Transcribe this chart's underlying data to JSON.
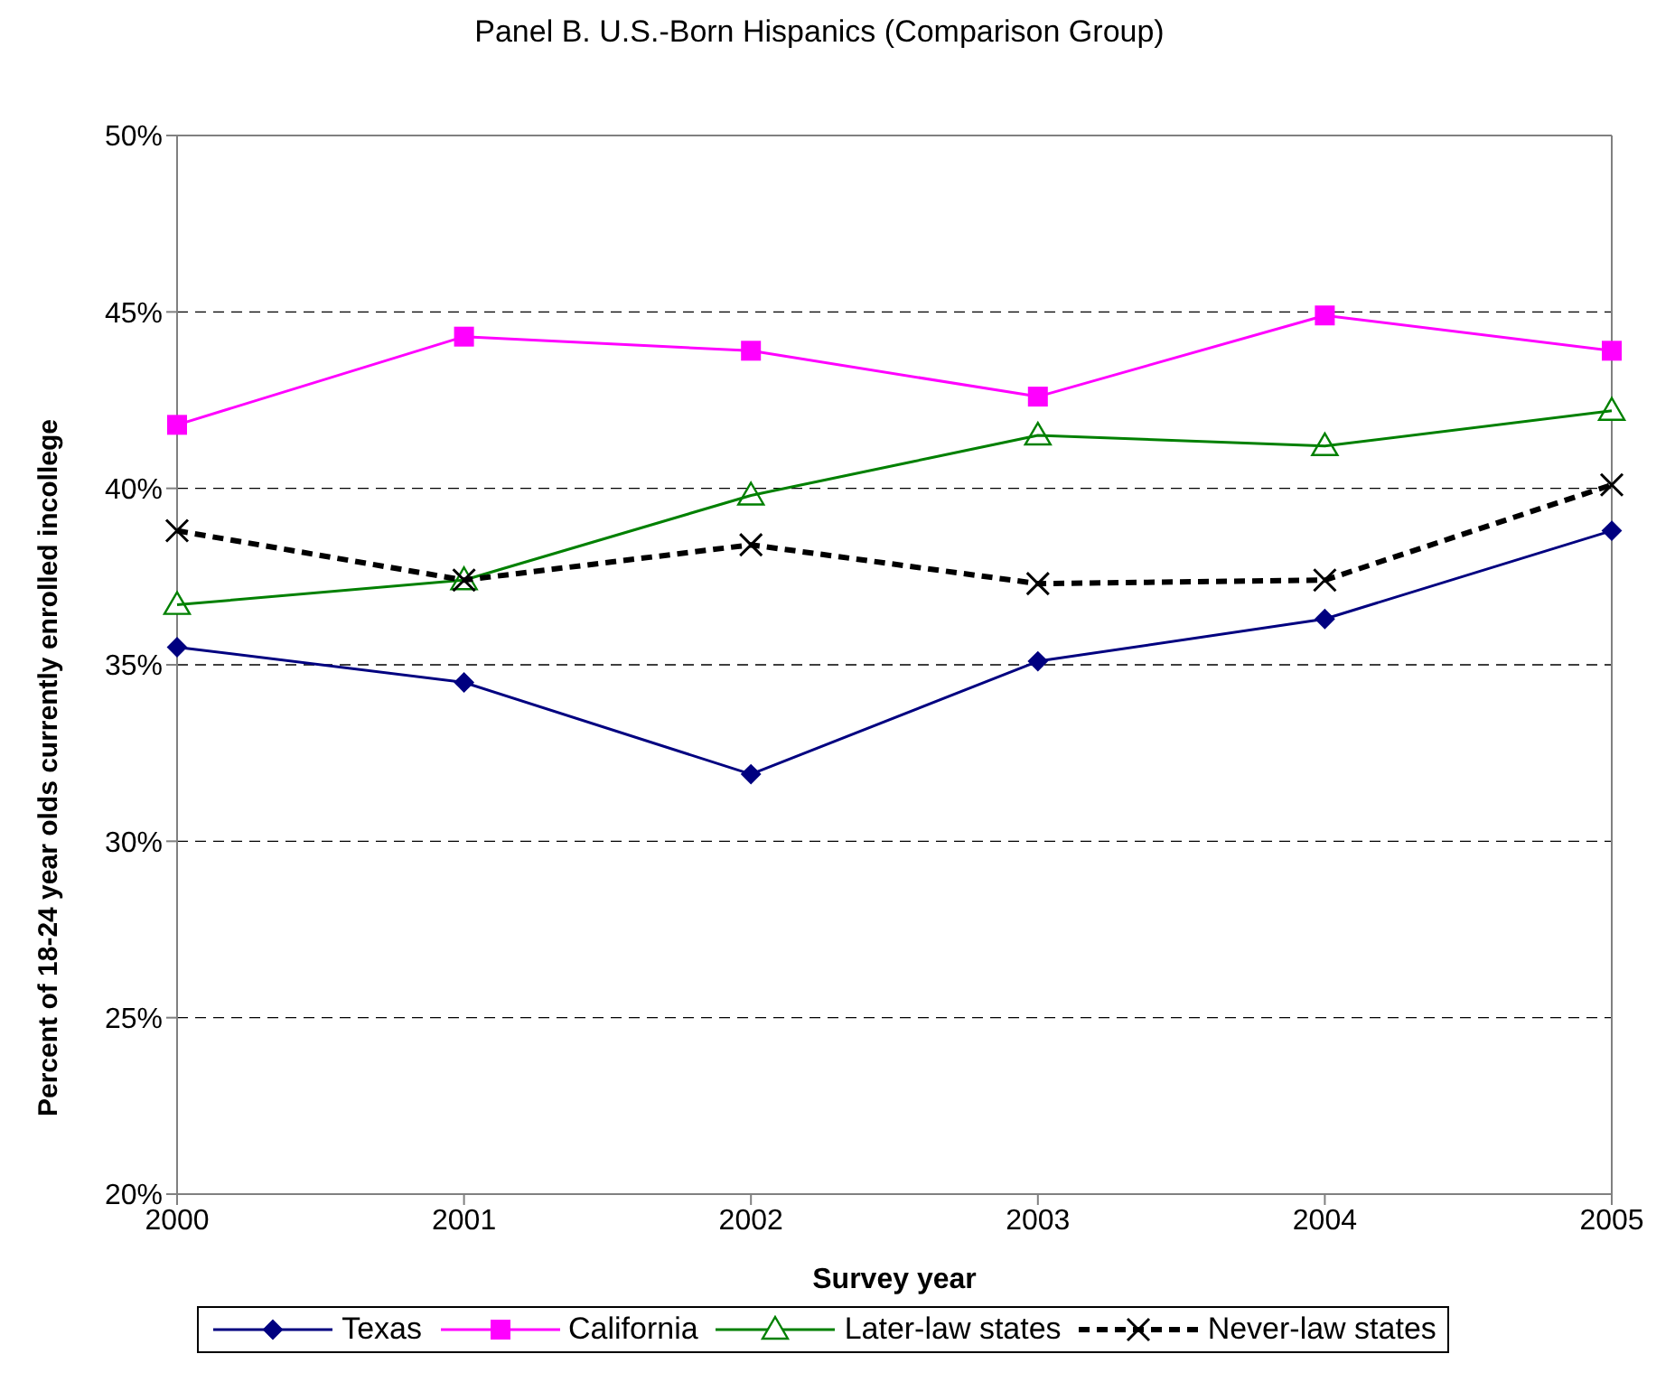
{
  "chart_data": {
    "type": "line",
    "title": "Panel B. U.S.-Born Hispanics (Comparison Group)",
    "xlabel": "Survey year",
    "ylabel": "Percent of 18-24 year olds currently enrolled incollege",
    "categories": [
      "2000",
      "2001",
      "2002",
      "2003",
      "2004",
      "2005"
    ],
    "series": [
      {
        "name": "Texas",
        "color": "#000080",
        "marker": "diamond",
        "line_style": "solid",
        "values": [
          35.5,
          34.5,
          31.9,
          35.1,
          36.3,
          38.8
        ]
      },
      {
        "name": "California",
        "color": "#ff00ff",
        "marker": "square",
        "line_style": "solid",
        "values": [
          41.8,
          44.3,
          43.9,
          42.6,
          44.9,
          43.9
        ]
      },
      {
        "name": "Later-law states",
        "color": "#008000",
        "marker": "triangle",
        "line_style": "solid",
        "values": [
          36.7,
          37.4,
          39.8,
          41.5,
          41.2,
          42.2
        ]
      },
      {
        "name": "Never-law states",
        "color": "#000000",
        "marker": "cross",
        "line_style": "dashed",
        "values": [
          38.8,
          37.4,
          38.4,
          37.3,
          37.4,
          40.1
        ]
      }
    ],
    "ylim": [
      20,
      50
    ],
    "yticks": [
      {
        "value": 20,
        "label": "20%"
      },
      {
        "value": 25,
        "label": "25%"
      },
      {
        "value": 30,
        "label": "30%"
      },
      {
        "value": 35,
        "label": "35%"
      },
      {
        "value": 40,
        "label": "40%"
      },
      {
        "value": 45,
        "label": "45%"
      },
      {
        "value": 50,
        "label": "50%"
      }
    ],
    "grid": "y",
    "legend": "bottom"
  }
}
